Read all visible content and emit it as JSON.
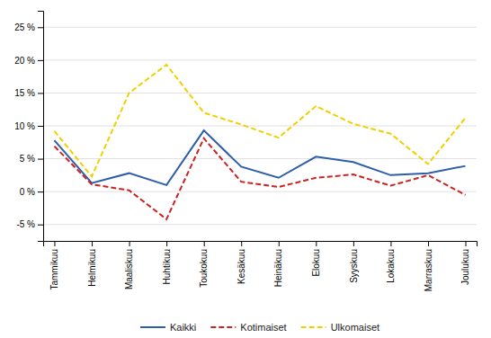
{
  "chart_data": {
    "type": "line",
    "categories": [
      "Tammikuu",
      "Helmikuu",
      "Maaliskuu",
      "Huhtikuu",
      "Toukokuu",
      "Kesäkuu",
      "Heinäkuu",
      "Elokuu",
      "Syyskuu",
      "Lokakuu",
      "Marraskuu",
      "Joulukuu"
    ],
    "series": [
      {
        "name": "Kaikki",
        "color": "#2e5ea8",
        "line_style": "solid",
        "values": [
          7.8,
          1.3,
          2.8,
          1.0,
          9.3,
          3.8,
          2.1,
          5.3,
          4.5,
          2.5,
          2.8,
          3.9
        ]
      },
      {
        "name": "Kotimaiset",
        "color": "#cc2222",
        "line_style": "dashed",
        "values": [
          6.9,
          1.1,
          0.2,
          -4.2,
          8.1,
          1.5,
          0.7,
          2.1,
          2.6,
          0.9,
          2.5,
          -0.5
        ]
      },
      {
        "name": "Ulkomaiset",
        "color": "#f0d000",
        "line_style": "dashed",
        "values": [
          9.2,
          2.3,
          15.0,
          19.3,
          12.0,
          10.2,
          8.2,
          13.0,
          10.3,
          8.8,
          4.2,
          11.2
        ]
      }
    ],
    "ylim": [
      -7.5,
      27.5
    ],
    "yticks": [
      {
        "value": -5,
        "label": "-5 %"
      },
      {
        "value": 0,
        "label": "0 %"
      },
      {
        "value": 5,
        "label": "5 %"
      },
      {
        "value": 10,
        "label": "10 %"
      },
      {
        "value": 15,
        "label": "15 %"
      },
      {
        "value": 20,
        "label": "20 %"
      },
      {
        "value": 25,
        "label": "25 %"
      }
    ],
    "grid": true,
    "legend": "bottom"
  }
}
